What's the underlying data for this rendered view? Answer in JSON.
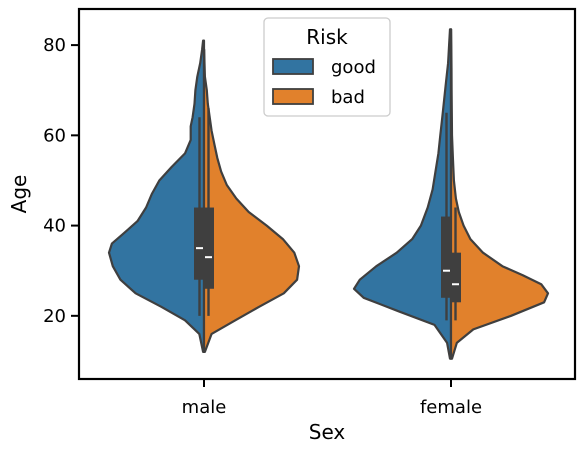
{
  "chart_data": {
    "type": "violin",
    "split": true,
    "xlabel": "Sex",
    "ylabel": "Age",
    "categories": [
      "male",
      "female"
    ],
    "ylim": [
      6,
      88
    ],
    "yticks": [
      20,
      40,
      60,
      80
    ],
    "legend": {
      "title": "Risk",
      "placement": "top-center",
      "entries": [
        "good",
        "bad"
      ]
    },
    "colors": {
      "good": "#3274a1",
      "bad": "#e1812c",
      "edge": "#3f3f3f"
    },
    "series": [
      {
        "name": "good",
        "side": "left",
        "groups": [
          {
            "category": "male",
            "box": {
              "whisker_low": 20,
              "q1": 28,
              "median": 35,
              "q3": 44,
              "whisker_high": 64
            },
            "density": [
              [
                12,
                0.01
              ],
              [
                16,
                0.05
              ],
              [
                19,
                0.2
              ],
              [
                22,
                0.45
              ],
              [
                25,
                0.72
              ],
              [
                28,
                0.88
              ],
              [
                31,
                0.96
              ],
              [
                34,
                1.0
              ],
              [
                36,
                0.97
              ],
              [
                38,
                0.86
              ],
              [
                41,
                0.7
              ],
              [
                44,
                0.61
              ],
              [
                47,
                0.55
              ],
              [
                50,
                0.47
              ],
              [
                53,
                0.34
              ],
              [
                56,
                0.2
              ],
              [
                59,
                0.14
              ],
              [
                62,
                0.14
              ],
              [
                64,
                0.12
              ],
              [
                67,
                0.1
              ],
              [
                70,
                0.09
              ],
              [
                73,
                0.07
              ],
              [
                76,
                0.04
              ],
              [
                79,
                0.02
              ],
              [
                81,
                0.01
              ]
            ]
          },
          {
            "category": "female",
            "box": {
              "whisker_low": 19,
              "q1": 24,
              "median": 30,
              "q3": 42,
              "whisker_high": 65
            },
            "density": [
              [
                10.5,
                0.01
              ],
              [
                14,
                0.04
              ],
              [
                18,
                0.17
              ],
              [
                21,
                0.54
              ],
              [
                24,
                0.9
              ],
              [
                26,
                1.0
              ],
              [
                28,
                0.94
              ],
              [
                31,
                0.77
              ],
              [
                34,
                0.56
              ],
              [
                37,
                0.4
              ],
              [
                40,
                0.31
              ],
              [
                44,
                0.24
              ],
              [
                48,
                0.19
              ],
              [
                52,
                0.16
              ],
              [
                56,
                0.13
              ],
              [
                60,
                0.11
              ],
              [
                64,
                0.09
              ],
              [
                68,
                0.07
              ],
              [
                72,
                0.05
              ],
              [
                76,
                0.03
              ],
              [
                80,
                0.02
              ],
              [
                83.5,
                0.01
              ]
            ]
          }
        ]
      },
      {
        "name": "bad",
        "side": "right",
        "groups": [
          {
            "category": "male",
            "box": {
              "whisker_low": 20,
              "q1": 26,
              "median": 33,
              "q3": 44,
              "whisker_high": 66
            },
            "density": [
              [
                12,
                0.01
              ],
              [
                16,
                0.08
              ],
              [
                19,
                0.33
              ],
              [
                22,
                0.58
              ],
              [
                25,
                0.84
              ],
              [
                28,
                0.98
              ],
              [
                31,
                1.0
              ],
              [
                34,
                0.95
              ],
              [
                37,
                0.83
              ],
              [
                40,
                0.66
              ],
              [
                43,
                0.47
              ],
              [
                46,
                0.34
              ],
              [
                49,
                0.24
              ],
              [
                52,
                0.18
              ],
              [
                55,
                0.14
              ],
              [
                58,
                0.11
              ],
              [
                61,
                0.08
              ],
              [
                64,
                0.06
              ],
              [
                67,
                0.04
              ],
              [
                70,
                0.03
              ],
              [
                73,
                0.01
              ],
              [
                76,
                0.005
              ],
              [
                79,
                0.002
              ]
            ]
          },
          {
            "category": "female",
            "box": {
              "whisker_low": 19,
              "q1": 23,
              "median": 27,
              "q3": 34,
              "whisker_high": 44
            },
            "density": [
              [
                10.5,
                0.01
              ],
              [
                14,
                0.06
              ],
              [
                17,
                0.23
              ],
              [
                20,
                0.62
              ],
              [
                23,
                0.96
              ],
              [
                25,
                1.0
              ],
              [
                27,
                0.93
              ],
              [
                29,
                0.74
              ],
              [
                31,
                0.53
              ],
              [
                34,
                0.33
              ],
              [
                37,
                0.2
              ],
              [
                40,
                0.13
              ],
              [
                43,
                0.08
              ],
              [
                46,
                0.05
              ],
              [
                50,
                0.03
              ],
              [
                55,
                0.02
              ],
              [
                60,
                0.01
              ],
              [
                65,
                0.008
              ],
              [
                70,
                0.006
              ],
              [
                75,
                0.005
              ],
              [
                80,
                0.003
              ],
              [
                83.5,
                0.001
              ]
            ]
          }
        ]
      }
    ]
  }
}
